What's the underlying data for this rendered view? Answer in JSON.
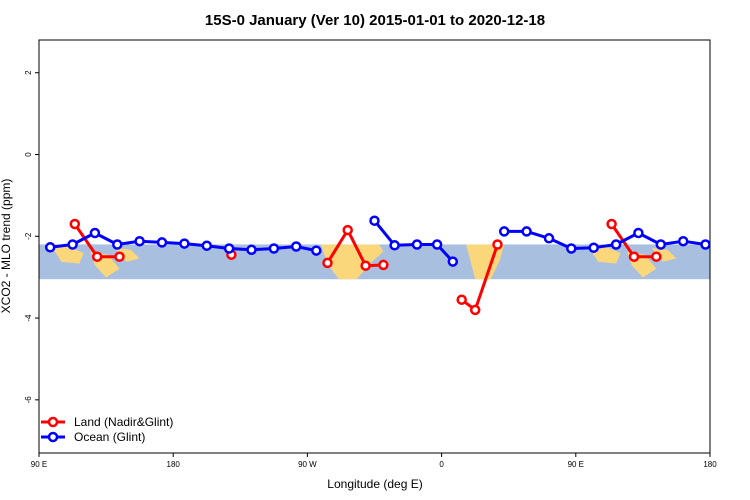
{
  "chart_data": {
    "type": "line",
    "title": "15S-0 January (Ver 10)   2015-01-01 to 2020-12-18",
    "xlabel": "Longitude (deg E)",
    "ylabel": "XCO2 - MLO trend (ppm)",
    "xlim": [
      90,
      390
    ],
    "ylim": [
      -7.3,
      2.8
    ],
    "x_ticks": [
      {
        "value": 90,
        "label": "90 E"
      },
      {
        "value": 150,
        "label": "180"
      },
      {
        "value": 210,
        "label": "90 W"
      },
      {
        "value": 270,
        "label": "0"
      },
      {
        "value": 330,
        "label": "90 E"
      },
      {
        "value": 390,
        "label": "180"
      }
    ],
    "y_ticks": [
      {
        "value": 2,
        "label": "2"
      },
      {
        "value": 0,
        "label": "0"
      },
      {
        "value": -2,
        "label": "-2"
      },
      {
        "value": -4,
        "label": "-4"
      },
      {
        "value": -6,
        "label": "-6"
      }
    ],
    "band": {
      "y_low": -3.05,
      "y_high": -2.2,
      "color": "#a9bfe0",
      "land_color": "#f9d77a"
    },
    "legend": {
      "position": "bottom-left"
    },
    "series": [
      {
        "name": "Land (Nadir&Glint)",
        "color": "#ff0000",
        "segments": [
          [
            [
              106,
              -1.7
            ],
            [
              116,
              -2.5
            ],
            [
              126,
              -2.5
            ]
          ],
          [
            [
              176,
              -2.45
            ]
          ],
          [
            [
              219,
              -2.65
            ],
            [
              228,
              -1.85
            ],
            [
              236,
              -2.72
            ],
            [
              244,
              -2.7
            ]
          ],
          [
            [
              279,
              -3.55
            ],
            [
              285,
              -3.8
            ],
            [
              295,
              -2.2
            ]
          ],
          [
            [
              346,
              -1.7
            ],
            [
              356,
              -2.5
            ],
            [
              366,
              -2.5
            ]
          ]
        ]
      },
      {
        "name": "Ocean (Glint)",
        "color": "#0000ff",
        "segments": [
          [
            [
              95,
              -2.27
            ],
            [
              105,
              -2.2
            ],
            [
              115,
              -1.92
            ],
            [
              125,
              -2.2
            ],
            [
              135,
              -2.12
            ],
            [
              145,
              -2.15
            ],
            [
              155,
              -2.18
            ],
            [
              165,
              -2.23
            ],
            [
              175,
              -2.3
            ],
            [
              185,
              -2.33
            ],
            [
              195,
              -2.3
            ],
            [
              205,
              -2.25
            ],
            [
              214,
              -2.35
            ]
          ],
          [
            [
              240,
              -1.62
            ],
            [
              249,
              -2.22
            ],
            [
              259,
              -2.2
            ],
            [
              268,
              -2.2
            ],
            [
              275,
              -2.62
            ]
          ],
          [
            [
              298,
              -1.88
            ],
            [
              308,
              -1.88
            ],
            [
              318,
              -2.05
            ],
            [
              328,
              -2.3
            ],
            [
              338,
              -2.28
            ],
            [
              348,
              -2.2
            ],
            [
              358,
              -1.92
            ],
            [
              368,
              -2.2
            ],
            [
              378,
              -2.12
            ],
            [
              388,
              -2.2
            ]
          ]
        ]
      }
    ]
  }
}
